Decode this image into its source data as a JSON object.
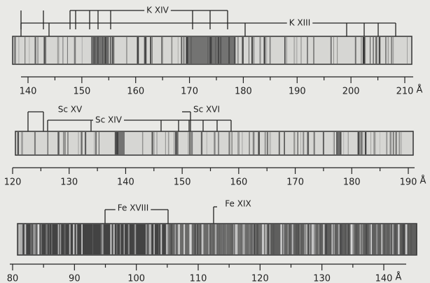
{
  "panels": [
    {
      "labels": [
        "K XIV",
        "K XIII"
      ],
      "ticks": [
        140,
        150,
        160,
        170,
        180,
        190,
        200,
        210
      ],
      "unit": "Å"
    },
    {
      "labels": [
        "Sc XV",
        "Sc XIV",
        "Sc XVI"
      ],
      "ticks": [
        120,
        130,
        140,
        150,
        160,
        170,
        180,
        190
      ],
      "unit": "Å"
    },
    {
      "labels": [
        "Fe XVIII",
        "Fe XIX"
      ],
      "ticks": [
        80,
        90,
        100,
        110,
        120,
        130,
        140
      ],
      "unit": "Å"
    }
  ]
}
